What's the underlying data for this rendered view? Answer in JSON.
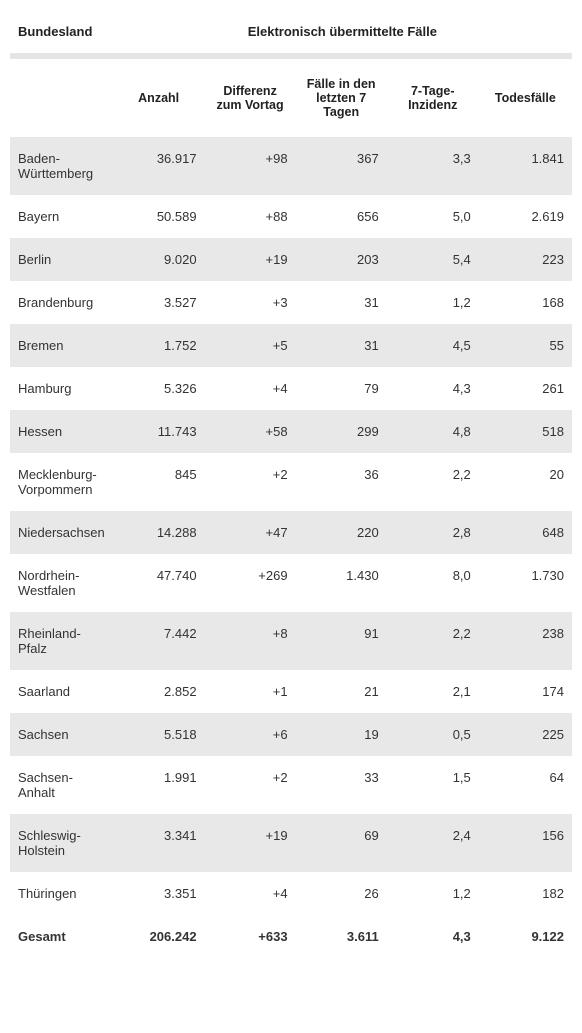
{
  "table": {
    "header": {
      "col1": "Bundesland",
      "group": "Elektronisch übermittelte Fälle",
      "subheaders": {
        "empty": "",
        "anzahl": "Anzahl",
        "diff": "Diffe­renz zum Vortag",
        "faelle7": "Fälle in den letzten 7 Tagen",
        "inzidenz": "7-Tage-Inzidenz",
        "todes": "Todesfälle"
      }
    },
    "rows": [
      {
        "land": "Baden-Württemberg",
        "anzahl": "36.917",
        "diff": "+98",
        "faelle7": "367",
        "inzidenz": "3,3",
        "todes": "1.841"
      },
      {
        "land": "Bayern",
        "anzahl": "50.589",
        "diff": "+88",
        "faelle7": "656",
        "inzidenz": "5,0",
        "todes": "2.619"
      },
      {
        "land": "Berlin",
        "anzahl": "9.020",
        "diff": "+19",
        "faelle7": "203",
        "inzidenz": "5,4",
        "todes": "223"
      },
      {
        "land": "Brandenburg",
        "anzahl": "3.527",
        "diff": "+3",
        "faelle7": "31",
        "inzidenz": "1,2",
        "todes": "168"
      },
      {
        "land": "Bremen",
        "anzahl": "1.752",
        "diff": "+5",
        "faelle7": "31",
        "inzidenz": "4,5",
        "todes": "55"
      },
      {
        "land": "Hamburg",
        "anzahl": "5.326",
        "diff": "+4",
        "faelle7": "79",
        "inzidenz": "4,3",
        "todes": "261"
      },
      {
        "land": "Hessen",
        "anzahl": "11.743",
        "diff": "+58",
        "faelle7": "299",
        "inzidenz": "4,8",
        "todes": "518"
      },
      {
        "land": "Meck­lenburg-Vorpommern",
        "anzahl": "845",
        "diff": "+2",
        "faelle7": "36",
        "inzidenz": "2,2",
        "todes": "20"
      },
      {
        "land": "Nieder­sachsen",
        "anzahl": "14.288",
        "diff": "+47",
        "faelle7": "220",
        "inzidenz": "2,8",
        "todes": "648"
      },
      {
        "land": "Nordrhein-Westfalen",
        "anzahl": "47.740",
        "diff": "+269",
        "faelle7": "1.430",
        "inzidenz": "8,0",
        "todes": "1.730"
      },
      {
        "land": "Rheinland-Pfalz",
        "anzahl": "7.442",
        "diff": "+8",
        "faelle7": "91",
        "inzidenz": "2,2",
        "todes": "238"
      },
      {
        "land": "Saarland",
        "anzahl": "2.852",
        "diff": "+1",
        "faelle7": "21",
        "inzidenz": "2,1",
        "todes": "174"
      },
      {
        "land": "Sachsen",
        "anzahl": "5.518",
        "diff": "+6",
        "faelle7": "19",
        "inzidenz": "0,5",
        "todes": "225"
      },
      {
        "land": "Sachsen-Anhalt",
        "anzahl": "1.991",
        "diff": "+2",
        "faelle7": "33",
        "inzidenz": "1,5",
        "todes": "64"
      },
      {
        "land": "Schleswig-Holstein",
        "anzahl": "3.341",
        "diff": "+19",
        "faelle7": "69",
        "inzidenz": "2,4",
        "todes": "156"
      },
      {
        "land": "Thüringen",
        "anzahl": "3.351",
        "diff": "+4",
        "faelle7": "26",
        "inzidenz": "1,2",
        "todes": "182"
      }
    ],
    "total": {
      "land": "Gesamt",
      "anzahl": "206.242",
      "diff": "+633",
      "faelle7": "3.611",
      "inzidenz": "4,3",
      "todes": "9.122"
    },
    "styling": {
      "font_family": "Arial",
      "body_font_size": 13,
      "header_font_size": 12.5,
      "row_odd_bg": "#e8e8e8",
      "row_even_bg": "#ffffff",
      "spacer_bg": "#e5e5e5",
      "text_color": "#333333",
      "col_widths": {
        "label": 104,
        "num": 95
      }
    }
  }
}
